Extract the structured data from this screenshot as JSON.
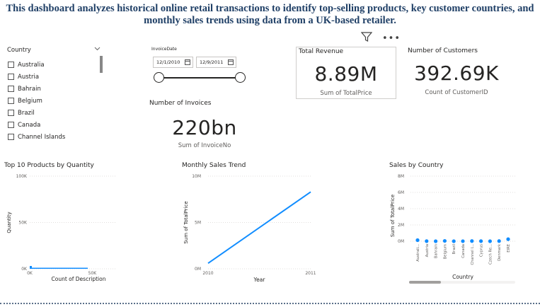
{
  "header": {
    "title": "This dashboard analyzes historical online retail transactions to identify top-selling products, key customer countries, and monthly sales trends using data from a UK-based retailer."
  },
  "visual_header": {
    "filter_icon": "filter-icon",
    "more_icon": "more-options-icon",
    "more_label": "•••"
  },
  "country_slicer": {
    "title": "Country",
    "items": [
      {
        "label": "Australia",
        "checked": false
      },
      {
        "label": "Austria",
        "checked": false
      },
      {
        "label": "Bahrain",
        "checked": false
      },
      {
        "label": "Belgium",
        "checked": false
      },
      {
        "label": "Brazil",
        "checked": false
      },
      {
        "label": "Canada",
        "checked": false
      },
      {
        "label": "Channel Islands",
        "checked": false
      }
    ]
  },
  "date_slicer": {
    "title": "InvoiceDate",
    "start": "12/1/2010",
    "end": "12/9/2011"
  },
  "cards": {
    "revenue": {
      "title": "Total Revenue",
      "value": "8.89M",
      "label": "Sum of TotalPrice"
    },
    "customers": {
      "title": "Number of Customers",
      "value": "392.69K",
      "label": "Count of CustomerID"
    },
    "invoices": {
      "title": "Number of Invoices",
      "value": "220bn",
      "label": "Sum of InvoiceNo"
    }
  },
  "chart_data": [
    {
      "type": "bar",
      "title": "Top 10 Products by Quantity",
      "xlabel": "Count of Description",
      "ylabel": "Quantity",
      "x_ticks": [
        "0K",
        "50K"
      ],
      "y_ticks": [
        "0K",
        "50K",
        "100K"
      ],
      "ylim": [
        0,
        100000
      ],
      "xlim": [
        0,
        100000
      ],
      "grid": true,
      "values": [
        {
          "x": 500,
          "y": 2000
        }
      ]
    },
    {
      "type": "line",
      "title": "Monthly Sales Trend",
      "xlabel": "Year",
      "ylabel": "Sum of TotalPrice",
      "x_ticks": [
        "2010",
        "2011"
      ],
      "y_ticks": [
        "0M",
        "5M",
        "10M"
      ],
      "ylim": [
        0,
        10000000
      ],
      "xlim": [
        2010,
        2011
      ],
      "grid": true,
      "color": "#118dff",
      "points": [
        {
          "x": 2010,
          "y": 600000
        },
        {
          "x": 2011,
          "y": 8300000
        }
      ]
    },
    {
      "type": "scatter",
      "title": "Sales by Country",
      "xlabel": "Country",
      "ylabel": "Sum of TotalPrice",
      "y_ticks": [
        "0M",
        "2M",
        "4M",
        "6M",
        "8M"
      ],
      "ylim": [
        0,
        8000000
      ],
      "grid": true,
      "color": "#118dff",
      "categories": [
        "Australi...",
        "Austria",
        "Bahrain",
        "Belgium",
        "Brazil",
        "Canada",
        "Channel I...",
        "Cyprus",
        "Czech Re...",
        "Denmark",
        "EIRE"
      ],
      "values": [
        130000,
        10000,
        500,
        40000,
        1000,
        4000,
        20000,
        13000,
        800,
        19000,
        250000
      ]
    }
  ]
}
